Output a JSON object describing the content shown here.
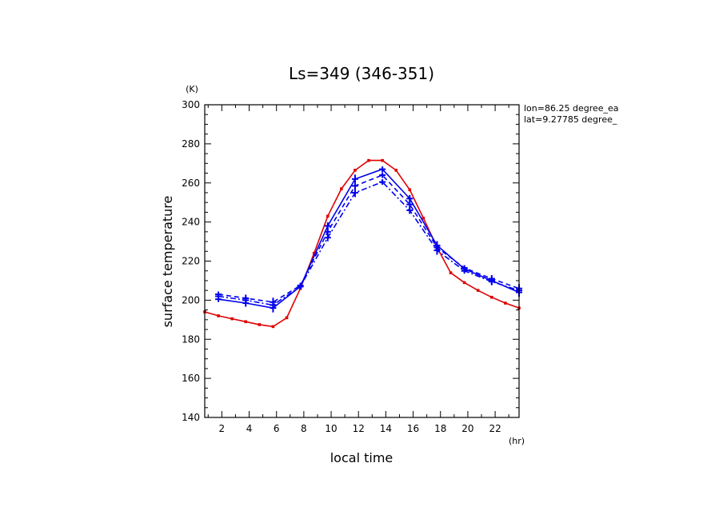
{
  "chart_data": {
    "type": "line",
    "title": "Ls=349 (346-351)",
    "xlabel": "local time",
    "ylabel": "surface temperature",
    "x_unit": "(hr)",
    "y_unit": "(K)",
    "xlim": [
      0.75,
      23.75
    ],
    "ylim": [
      140,
      300
    ],
    "x_ticks": [
      2,
      4,
      6,
      8,
      10,
      12,
      14,
      16,
      18,
      20,
      22
    ],
    "y_ticks": [
      140,
      160,
      180,
      200,
      220,
      240,
      260,
      280,
      300
    ],
    "grid": false,
    "annotations": [
      "lon=86.25 degree_ea",
      "lat=9.27785 degree_"
    ],
    "series": [
      {
        "color": "#e00000",
        "dash": "solid",
        "x": [
          0.75,
          1.75,
          2.75,
          3.75,
          4.75,
          5.75,
          6.75,
          7.75,
          8.75,
          9.75,
          10.75,
          11.75,
          12.75,
          13.75,
          14.75,
          15.75,
          16.75,
          17.75,
          18.75,
          19.75,
          20.75,
          21.75,
          22.75,
          23.75
        ],
        "y": [
          194,
          192,
          190.5,
          189,
          187.5,
          186.5,
          191,
          206,
          224,
          243,
          257,
          266.5,
          271.5,
          271.5,
          266.5,
          256.5,
          242,
          227,
          214,
          209,
          205,
          201.5,
          198.5,
          196
        ]
      },
      {
        "color": "#0000ee",
        "dash": "solid",
        "x": [
          1.75,
          3.75,
          5.75,
          7.75,
          9.75,
          11.75,
          13.75,
          15.75,
          17.75,
          19.75,
          21.75,
          23.75
        ],
        "y": [
          200.5,
          198.5,
          196,
          207,
          238,
          262,
          267,
          252,
          228,
          216,
          210,
          204
        ]
      },
      {
        "color": "#0000ee",
        "dash": "dashed",
        "x": [
          1.75,
          3.75,
          5.75,
          7.75,
          9.75,
          11.75,
          13.75,
          15.75,
          17.75,
          19.75,
          21.75,
          23.75
        ],
        "y": [
          203,
          201,
          199,
          207.5,
          235,
          258.5,
          264,
          249,
          227,
          216.5,
          211,
          206
        ]
      },
      {
        "color": "#0000ee",
        "dash": "dashdot",
        "x": [
          1.75,
          3.75,
          5.75,
          7.75,
          9.75,
          11.75,
          13.75,
          15.75,
          17.75,
          19.75,
          21.75,
          23.75
        ],
        "y": [
          202,
          200,
          197.5,
          207,
          232,
          255,
          260.5,
          246,
          225.5,
          215,
          209.5,
          205
        ]
      }
    ]
  }
}
